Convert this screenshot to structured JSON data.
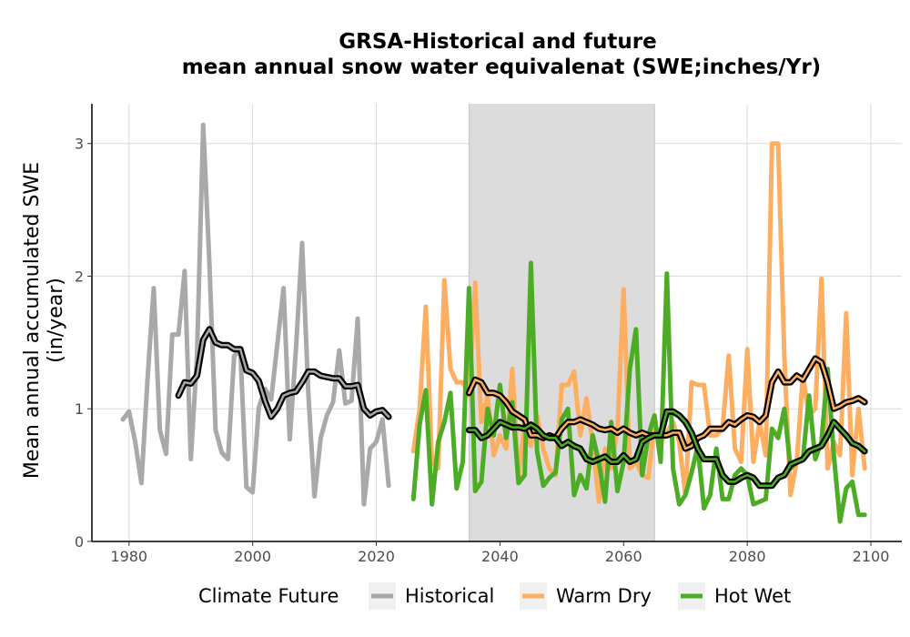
{
  "chart_data": {
    "type": "line",
    "title": "GRSA-Historical and future",
    "subtitle": "mean annual snow water equivalenat (SWE;inches/Yr)",
    "xlabel": "",
    "ylabel_line1": "Mean annual accumulated SWE",
    "ylabel_line2": "(in/year)",
    "xlim": [
      1974,
      2105
    ],
    "ylim": [
      0,
      3.3
    ],
    "x_ticks": [
      1980,
      2000,
      2020,
      2040,
      2060,
      2080,
      2100
    ],
    "y_ticks": [
      0,
      1,
      2,
      3
    ],
    "grid": true,
    "shaded_period": [
      2035,
      2065
    ],
    "shaded_color": "#dcdcdc",
    "legend": {
      "title": "Climate Future",
      "position": "bottom",
      "entries": [
        {
          "label": "Historical",
          "color": "#a9a9a9"
        },
        {
          "label": "Warm Dry",
          "color": "#fdae61"
        },
        {
          "label": "Hot Wet",
          "color": "#4dac26"
        }
      ]
    },
    "series": [
      {
        "name": "Historical",
        "color": "#a9a9a9",
        "x": [
          1979,
          1980,
          1981,
          1982,
          1983,
          1984,
          1985,
          1986,
          1987,
          1988,
          1989,
          1990,
          1991,
          1992,
          1993,
          1994,
          1995,
          1996,
          1997,
          1998,
          1999,
          2000,
          2001,
          2002,
          2003,
          2004,
          2005,
          2006,
          2007,
          2008,
          2009,
          2010,
          2011,
          2012,
          2013,
          2014,
          2015,
          2016,
          2017,
          2018,
          2019,
          2020,
          2021,
          2022
        ],
        "y": [
          0.92,
          0.98,
          0.75,
          0.44,
          1.22,
          1.91,
          0.84,
          0.66,
          1.56,
          1.56,
          2.04,
          0.62,
          1.4,
          3.14,
          2.1,
          0.84,
          0.67,
          0.62,
          1.4,
          1.44,
          0.41,
          0.37,
          1.01,
          1.15,
          1.07,
          1.49,
          1.91,
          0.77,
          1.45,
          2.25,
          1.12,
          0.34,
          0.78,
          0.95,
          1.05,
          1.44,
          1.04,
          1.06,
          1.68,
          0.28,
          0.7,
          0.75,
          0.92,
          0.42
        ],
        "smoothed_x": [
          1988,
          1989,
          1990,
          1991,
          1992,
          1993,
          1994,
          1995,
          1996,
          1997,
          1998,
          1999,
          2000,
          2001,
          2002,
          2003,
          2004,
          2005,
          2006,
          2007,
          2008,
          2009,
          2010,
          2011,
          2012,
          2013,
          2014,
          2015,
          2016,
          2017,
          2018,
          2019,
          2020,
          2021,
          2022
        ],
        "smoothed_y": [
          1.1,
          1.2,
          1.19,
          1.25,
          1.52,
          1.6,
          1.5,
          1.48,
          1.48,
          1.45,
          1.45,
          1.29,
          1.27,
          1.21,
          1.06,
          0.94,
          1.0,
          1.1,
          1.12,
          1.13,
          1.2,
          1.28,
          1.28,
          1.25,
          1.24,
          1.23,
          1.23,
          1.17,
          1.17,
          1.18,
          1.0,
          0.95,
          0.98,
          0.99,
          0.94
        ]
      },
      {
        "name": "Warm Dry",
        "color": "#fdae61",
        "x": [
          2026,
          2027,
          2028,
          2029,
          2030,
          2031,
          2032,
          2033,
          2034,
          2035,
          2036,
          2037,
          2038,
          2039,
          2040,
          2041,
          2042,
          2043,
          2044,
          2045,
          2046,
          2047,
          2048,
          2049,
          2050,
          2051,
          2052,
          2053,
          2054,
          2055,
          2056,
          2057,
          2058,
          2059,
          2060,
          2061,
          2062,
          2063,
          2064,
          2065,
          2066,
          2067,
          2068,
          2069,
          2070,
          2071,
          2072,
          2073,
          2074,
          2075,
          2076,
          2077,
          2078,
          2079,
          2080,
          2081,
          2082,
          2083,
          2084,
          2085,
          2086,
          2087,
          2088,
          2089,
          2090,
          2091,
          2092,
          2093,
          2094,
          2095,
          2096,
          2097,
          2098,
          2099
        ],
        "y": [
          0.68,
          1.0,
          1.77,
          0.6,
          0.55,
          1.97,
          1.3,
          1.2,
          1.2,
          1.1,
          1.95,
          0.9,
          1.1,
          0.65,
          0.8,
          0.7,
          1.3,
          0.48,
          0.9,
          0.72,
          0.95,
          0.7,
          0.55,
          0.5,
          1.18,
          1.18,
          1.28,
          0.8,
          1.08,
          0.75,
          0.3,
          0.7,
          0.55,
          0.85,
          1.9,
          0.55,
          0.6,
          0.5,
          0.48,
          0.9,
          0.75,
          0.82,
          0.9,
          0.75,
          0.35,
          1.2,
          1.18,
          1.18,
          0.8,
          0.8,
          0.85,
          1.4,
          0.7,
          0.6,
          1.45,
          0.6,
          0.9,
          0.65,
          3.0,
          3.0,
          1.4,
          0.35,
          0.6,
          1.25,
          0.95,
          1.0,
          1.98,
          0.55,
          0.75,
          0.65,
          1.72,
          0.5,
          1.0,
          0.55
        ],
        "smoothed_x": [
          2035,
          2036,
          2037,
          2038,
          2039,
          2040,
          2041,
          2042,
          2043,
          2044,
          2045,
          2046,
          2047,
          2048,
          2049,
          2050,
          2051,
          2052,
          2053,
          2054,
          2055,
          2056,
          2057,
          2058,
          2059,
          2060,
          2061,
          2062,
          2063,
          2064,
          2065,
          2066,
          2067,
          2068,
          2069,
          2070,
          2071,
          2072,
          2073,
          2074,
          2075,
          2076,
          2077,
          2078,
          2079,
          2080,
          2081,
          2082,
          2083,
          2084,
          2085,
          2086,
          2087,
          2088,
          2089,
          2090,
          2091,
          2092,
          2093,
          2094,
          2095,
          2096,
          2097,
          2098,
          2099
        ],
        "smoothed_y": [
          1.12,
          1.22,
          1.2,
          1.12,
          1.12,
          1.1,
          1.05,
          0.98,
          0.95,
          0.92,
          0.8,
          0.8,
          0.78,
          0.8,
          0.78,
          0.85,
          0.9,
          0.9,
          0.92,
          0.9,
          0.88,
          0.85,
          0.84,
          0.85,
          0.82,
          0.85,
          0.82,
          0.8,
          0.82,
          0.8,
          0.8,
          0.8,
          0.8,
          0.82,
          0.82,
          0.7,
          0.72,
          0.78,
          0.8,
          0.85,
          0.85,
          0.85,
          0.9,
          0.88,
          0.92,
          0.95,
          0.94,
          0.9,
          0.95,
          1.2,
          1.28,
          1.2,
          1.2,
          1.25,
          1.22,
          1.3,
          1.38,
          1.35,
          1.2,
          1.0,
          1.02,
          1.05,
          1.06,
          1.08,
          1.05
        ]
      },
      {
        "name": "Hot Wet",
        "color": "#4dac26",
        "x": [
          2026,
          2027,
          2028,
          2029,
          2030,
          2031,
          2032,
          2033,
          2034,
          2035,
          2036,
          2037,
          2038,
          2039,
          2040,
          2041,
          2042,
          2043,
          2044,
          2045,
          2046,
          2047,
          2048,
          2049,
          2050,
          2051,
          2052,
          2053,
          2054,
          2055,
          2056,
          2057,
          2058,
          2059,
          2060,
          2061,
          2062,
          2063,
          2064,
          2065,
          2066,
          2067,
          2068,
          2069,
          2070,
          2071,
          2072,
          2073,
          2074,
          2075,
          2076,
          2077,
          2078,
          2079,
          2080,
          2081,
          2082,
          2083,
          2084,
          2085,
          2086,
          2087,
          2088,
          2089,
          2090,
          2091,
          2092,
          2093,
          2094,
          2095,
          2096,
          2097,
          2098,
          2099
        ],
        "y": [
          0.32,
          0.88,
          1.14,
          0.28,
          0.75,
          0.9,
          1.12,
          0.4,
          0.6,
          1.91,
          0.38,
          0.45,
          1.0,
          0.8,
          1.18,
          0.78,
          1.05,
          0.44,
          0.5,
          2.1,
          0.68,
          0.42,
          0.48,
          0.52,
          0.92,
          1.0,
          0.35,
          0.5,
          0.4,
          0.8,
          0.6,
          0.3,
          0.9,
          0.38,
          0.6,
          1.3,
          1.6,
          0.5,
          0.8,
          0.95,
          0.6,
          2.02,
          0.55,
          0.28,
          0.35,
          0.52,
          0.72,
          0.25,
          0.35,
          0.7,
          0.32,
          0.32,
          0.5,
          0.55,
          0.5,
          0.28,
          0.3,
          0.32,
          0.85,
          0.78,
          1.0,
          0.55,
          0.6,
          0.62,
          1.1,
          0.62,
          0.75,
          1.3,
          0.65,
          0.15,
          0.4,
          0.45,
          0.2,
          0.2
        ],
        "smoothed_x": [
          2035,
          2036,
          2037,
          2038,
          2039,
          2040,
          2041,
          2042,
          2043,
          2044,
          2045,
          2046,
          2047,
          2048,
          2049,
          2050,
          2051,
          2052,
          2053,
          2054,
          2055,
          2056,
          2057,
          2058,
          2059,
          2060,
          2061,
          2062,
          2063,
          2064,
          2065,
          2066,
          2067,
          2068,
          2069,
          2070,
          2071,
          2072,
          2073,
          2074,
          2075,
          2076,
          2077,
          2078,
          2079,
          2080,
          2081,
          2082,
          2083,
          2084,
          2085,
          2086,
          2087,
          2088,
          2089,
          2090,
          2091,
          2092,
          2093,
          2094,
          2095,
          2096,
          2097,
          2098,
          2099
        ],
        "smoothed_y": [
          0.84,
          0.84,
          0.78,
          0.8,
          0.85,
          0.9,
          0.88,
          0.86,
          0.86,
          0.85,
          0.88,
          0.85,
          0.8,
          0.78,
          0.78,
          0.72,
          0.75,
          0.72,
          0.7,
          0.62,
          0.6,
          0.62,
          0.64,
          0.6,
          0.6,
          0.65,
          0.6,
          0.62,
          0.75,
          0.78,
          0.8,
          0.8,
          0.98,
          0.98,
          0.95,
          0.9,
          0.82,
          0.7,
          0.62,
          0.62,
          0.62,
          0.5,
          0.45,
          0.45,
          0.48,
          0.5,
          0.48,
          0.42,
          0.42,
          0.42,
          0.48,
          0.5,
          0.58,
          0.6,
          0.62,
          0.68,
          0.7,
          0.72,
          0.8,
          0.9,
          0.85,
          0.8,
          0.74,
          0.72,
          0.68
        ]
      }
    ]
  }
}
